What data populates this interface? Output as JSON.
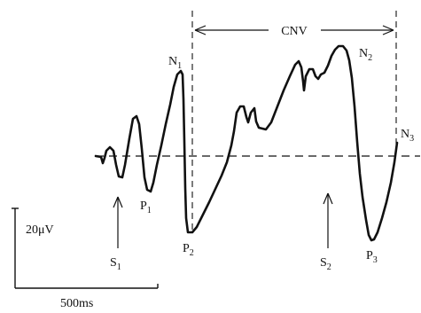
{
  "figure": {
    "cnv_label": "CNV",
    "peaks": {
      "N1": {
        "letter": "N",
        "sub": "1"
      },
      "N2": {
        "letter": "N",
        "sub": "2"
      },
      "N3": {
        "letter": "N",
        "sub": "3"
      },
      "P1": {
        "letter": "P",
        "sub": "1"
      },
      "P2": {
        "letter": "P",
        "sub": "2"
      },
      "P3": {
        "letter": "P",
        "sub": "3"
      }
    },
    "stimuli": {
      "S1": {
        "letter": "S",
        "sub": "1"
      },
      "S2": {
        "letter": "S",
        "sub": "2"
      }
    },
    "scale": {
      "amplitude_label": "20μV",
      "time_label": "500ms"
    },
    "colors": {
      "ink": "#111111",
      "background": "#ffffff"
    }
  }
}
